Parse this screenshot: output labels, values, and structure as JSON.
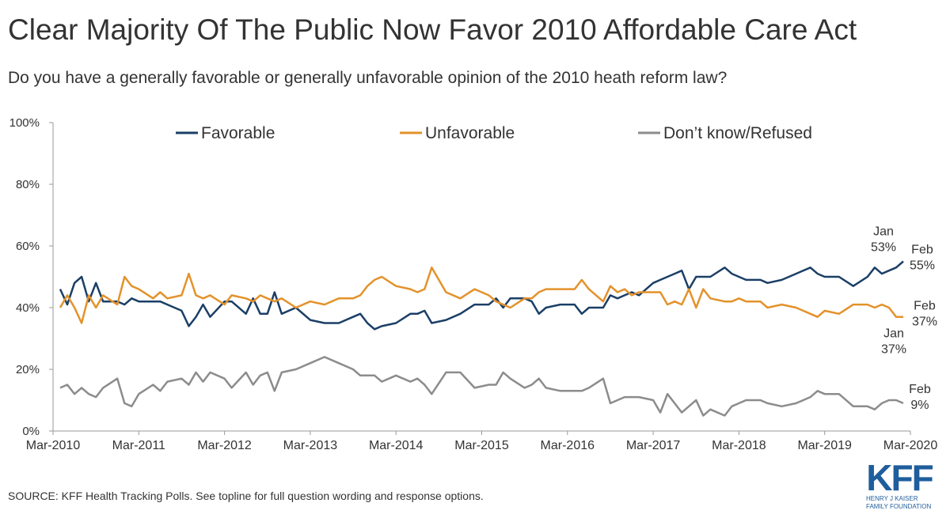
{
  "chart_data": {
    "type": "line",
    "title": "Clear Majority Of The Public Now Favor 2010 Affordable Care Act",
    "subtitle": "Do you have a generally favorable or generally unfavorable opinion of the 2010 heath reform law?",
    "source": "SOURCE: KFF Health Tracking Polls. See topline for full question wording and response options.",
    "logo": {
      "text": "KFF",
      "lines": [
        "HENRY J KAISER",
        "FAMILY FOUNDATION"
      ]
    },
    "legend": "top",
    "grid": false,
    "xlim": [
      "2010-03",
      "2020-03"
    ],
    "xticks": [
      {
        "value": "2010-03",
        "label": "Mar-2010"
      },
      {
        "value": "2011-03",
        "label": "Mar-2011"
      },
      {
        "value": "2012-03",
        "label": "Mar-2012"
      },
      {
        "value": "2013-03",
        "label": "Mar-2013"
      },
      {
        "value": "2014-03",
        "label": "Mar-2014"
      },
      {
        "value": "2015-03",
        "label": "Mar-2015"
      },
      {
        "value": "2016-03",
        "label": "Mar-2016"
      },
      {
        "value": "2017-03",
        "label": "Mar-2017"
      },
      {
        "value": "2018-03",
        "label": "Mar-2018"
      },
      {
        "value": "2019-03",
        "label": "Mar-2019"
      },
      {
        "value": "2020-03",
        "label": "Mar-2020"
      }
    ],
    "ylim": [
      0,
      100
    ],
    "yticks": [
      {
        "value": 0,
        "label": "0%"
      },
      {
        "value": 20,
        "label": "20%"
      },
      {
        "value": 40,
        "label": "40%"
      },
      {
        "value": 60,
        "label": "60%"
      },
      {
        "value": 80,
        "label": "80%"
      },
      {
        "value": 100,
        "label": "100%"
      }
    ],
    "x": [
      "2010-04",
      "2010-05",
      "2010-06",
      "2010-07",
      "2010-08",
      "2010-09",
      "2010-10",
      "2010-12",
      "2011-01",
      "2011-02",
      "2011-03",
      "2011-05",
      "2011-06",
      "2011-07",
      "2011-09",
      "2011-10",
      "2011-11",
      "2011-12",
      "2012-01",
      "2012-03",
      "2012-04",
      "2012-06",
      "2012-07",
      "2012-08",
      "2012-09",
      "2012-10",
      "2012-11",
      "2013-01",
      "2013-03",
      "2013-05",
      "2013-07",
      "2013-09",
      "2013-10",
      "2013-11",
      "2013-12",
      "2014-01",
      "2014-03",
      "2014-05",
      "2014-06",
      "2014-07",
      "2014-08",
      "2014-10",
      "2014-12",
      "2015-02",
      "2015-04",
      "2015-05",
      "2015-06",
      "2015-07",
      "2015-09",
      "2015-10",
      "2015-11",
      "2015-12",
      "2016-02",
      "2016-04",
      "2016-05",
      "2016-06",
      "2016-08",
      "2016-09",
      "2016-10",
      "2016-11",
      "2016-12",
      "2017-01",
      "2017-03",
      "2017-04",
      "2017-05",
      "2017-06",
      "2017-07",
      "2017-08",
      "2017-09",
      "2017-10",
      "2017-11",
      "2018-01",
      "2018-02",
      "2018-03",
      "2018-04",
      "2018-06",
      "2018-07",
      "2018-09",
      "2018-11",
      "2019-01",
      "2019-02",
      "2019-03",
      "2019-05",
      "2019-07",
      "2019-09",
      "2019-10",
      "2019-11",
      "2019-12",
      "2020-01",
      "2020-02"
    ],
    "series": [
      {
        "name": "Favorable",
        "color": "#1b3f66",
        "values": [
          46,
          41,
          48,
          50,
          42,
          48,
          42,
          42,
          41,
          43,
          42,
          42,
          42,
          41,
          39,
          34,
          37,
          41,
          37,
          42,
          42,
          38,
          43,
          38,
          38,
          45,
          38,
          40,
          36,
          35,
          35,
          37,
          38,
          35,
          33,
          34,
          35,
          38,
          38,
          39,
          35,
          36,
          38,
          41,
          41,
          43,
          40,
          43,
          43,
          42,
          38,
          40,
          41,
          41,
          38,
          40,
          40,
          44,
          43,
          44,
          45,
          44,
          48,
          49,
          50,
          51,
          52,
          46,
          50,
          50,
          50,
          53,
          51,
          50,
          49,
          49,
          48,
          49,
          51,
          53,
          51,
          50,
          50,
          47,
          50,
          53,
          51,
          52,
          53,
          55
        ],
        "annotations": [
          {
            "label": "Jan",
            "value": 53,
            "value_label": "53%"
          },
          {
            "label": "Feb",
            "value": 55,
            "value_label": "55%"
          }
        ]
      },
      {
        "name": "Unfavorable",
        "color": "#e3922b",
        "values": [
          40,
          44,
          40,
          35,
          44,
          40,
          44,
          41,
          50,
          47,
          46,
          43,
          45,
          43,
          44,
          51,
          44,
          43,
          44,
          41,
          44,
          43,
          42,
          44,
          43,
          42,
          43,
          40,
          42,
          41,
          43,
          43,
          44,
          47,
          49,
          50,
          47,
          46,
          45,
          46,
          53,
          45,
          43,
          46,
          44,
          42,
          41,
          40,
          43,
          43,
          45,
          46,
          46,
          46,
          49,
          46,
          42,
          47,
          45,
          46,
          44,
          45,
          45,
          45,
          41,
          42,
          41,
          46,
          40,
          46,
          43,
          42,
          42,
          43,
          42,
          42,
          40,
          41,
          40,
          38,
          37,
          39,
          38,
          41,
          41,
          40,
          41,
          40,
          37,
          37
        ],
        "annotations": [
          {
            "label": "Feb",
            "value": 37,
            "value_label": "37%"
          },
          {
            "label": "Jan",
            "value": 37,
            "value_label": "37%"
          }
        ]
      },
      {
        "name": "Don’t know/Refused",
        "color": "#8c8c8c",
        "values": [
          14,
          15,
          12,
          14,
          12,
          11,
          14,
          17,
          9,
          8,
          12,
          15,
          13,
          16,
          17,
          15,
          19,
          16,
          19,
          17,
          14,
          19,
          15,
          18,
          19,
          13,
          19,
          20,
          22,
          24,
          22,
          20,
          18,
          18,
          18,
          16,
          18,
          16,
          17,
          15,
          12,
          19,
          19,
          14,
          15,
          15,
          19,
          17,
          14,
          15,
          17,
          14,
          13,
          13,
          13,
          14,
          17,
          9,
          10,
          11,
          11,
          11,
          10,
          6,
          12,
          9,
          6,
          8,
          10,
          5,
          7,
          5,
          8,
          9,
          10,
          10,
          9,
          8,
          9,
          11,
          13,
          12,
          12,
          8,
          8,
          7,
          9,
          10,
          10,
          9
        ],
        "annotations": [
          {
            "label": "Feb",
            "value": 9,
            "value_label": "9%"
          }
        ]
      }
    ]
  }
}
